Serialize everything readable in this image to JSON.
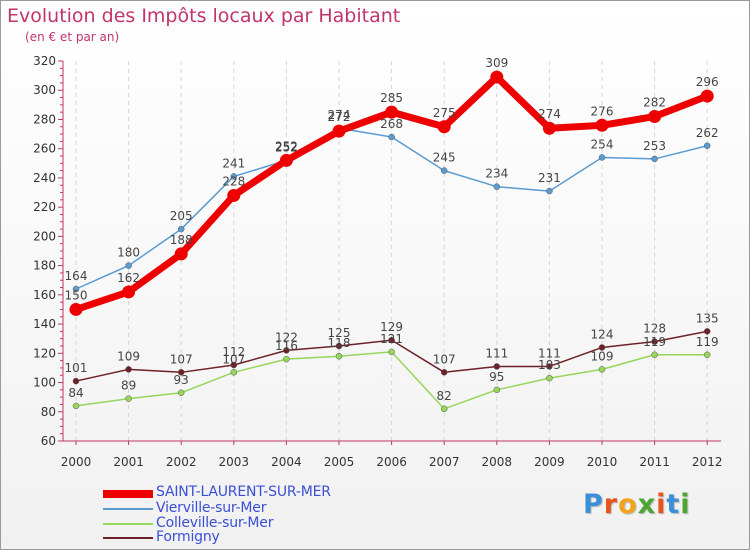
{
  "title": "Evolution des Impôts locaux par Habitant",
  "subtitle": "(en € et par an)",
  "logo_text": "Proxiti",
  "chart_data": {
    "type": "line",
    "title": "Evolution des Impôts locaux par Habitant",
    "subtitle": "(en € et par an)",
    "xlabel": "",
    "ylabel": "",
    "ylim": [
      60,
      320
    ],
    "yticks": [
      60,
      80,
      100,
      120,
      140,
      160,
      180,
      200,
      220,
      240,
      260,
      280,
      300,
      320
    ],
    "grid": "vertical",
    "legend_position": "bottom-left",
    "categories": [
      "2000",
      "2001",
      "2002",
      "2003",
      "2004",
      "2005",
      "2006",
      "2007",
      "2008",
      "2009",
      "2010",
      "2011",
      "2012"
    ],
    "series": [
      {
        "name": "SAINT-LAURENT-SUR-MER",
        "color": "#ee0000",
        "values": [
          150,
          162,
          188,
          228,
          252,
          272,
          285,
          275,
          309,
          274,
          276,
          282,
          296
        ]
      },
      {
        "name": "Vierville-sur-Mer",
        "color": "#5c9bd0",
        "values": [
          164,
          180,
          205,
          241,
          252,
          274,
          268,
          245,
          234,
          231,
          254,
          253,
          262
        ]
      },
      {
        "name": "Colleville-sur-Mer",
        "color": "#96d65a",
        "values": [
          84,
          89,
          93,
          107,
          116,
          118,
          121,
          82,
          95,
          103,
          109,
          119,
          119
        ]
      },
      {
        "name": "Formigny",
        "color": "#6e2126",
        "values": [
          101,
          109,
          107,
          112,
          122,
          125,
          129,
          107,
          111,
          111,
          124,
          128,
          135
        ]
      }
    ]
  }
}
